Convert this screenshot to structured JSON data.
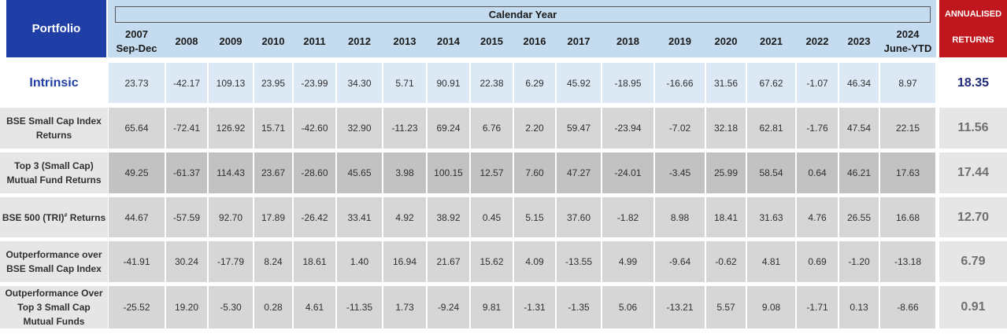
{
  "header": {
    "portfolio_label": "Portfolio",
    "calendar_title": "Calendar  Year",
    "years": [
      "2007\nSep-Dec",
      "2008",
      "2009",
      "2010",
      "2011",
      "2012",
      "2013",
      "2014",
      "2015",
      "2016",
      "2017",
      "2018",
      "2019",
      "2020",
      "2021",
      "2022",
      "2023",
      "2024\nJune-YTD"
    ],
    "annualised_line1": "ANNUALISED",
    "annualised_line2": "RETURNS"
  },
  "rows": [
    {
      "label": "Intrinsic",
      "values": [
        "23.73",
        "-42.17",
        "109.13",
        "23.95",
        "-23.99",
        "34.30",
        "5.71",
        "90.91",
        "22.38",
        "6.29",
        "45.92",
        "-18.95",
        "-16.66",
        "31.56",
        "67.62",
        "-1.07",
        "46.34",
        "8.97"
      ],
      "annualised": "18.35"
    },
    {
      "label": "BSE Small Cap  Index\nReturns",
      "values": [
        "65.64",
        "-72.41",
        "126.92",
        "15.71",
        "-42.60",
        "32.90",
        "-11.23",
        "69.24",
        "6.76",
        "2.20",
        "59.47",
        "-23.94",
        "-7.02",
        "32.18",
        "62.81",
        "-1.76",
        "47.54",
        "22.15"
      ],
      "annualised": "11.56"
    },
    {
      "label": "Top 3 (Small Cap)\nMutual Fund Returns",
      "values": [
        "49.25",
        "-61.37",
        "114.43",
        "23.67",
        "-28.60",
        "45.65",
        "3.98",
        "100.15",
        "12.57",
        "7.60",
        "47.27",
        "-24.01",
        "-3.45",
        "25.99",
        "58.54",
        "0.64",
        "46.21",
        "17.63"
      ],
      "annualised": "17.44"
    },
    {
      "label_pre": "BSE 500 (TRI)",
      "label_sup": "#",
      "label_post": " Returns",
      "values": [
        "44.67",
        "-57.59",
        "92.70",
        "17.89",
        "-26.42",
        "33.41",
        "4.92",
        "38.92",
        "0.45",
        "5.15",
        "37.60",
        "-1.82",
        "8.98",
        "18.41",
        "31.63",
        "4.76",
        "26.55",
        "16.68"
      ],
      "annualised": "12.70"
    },
    {
      "label": "Outperformance over\nBSE Small  Cap Index",
      "values": [
        "-41.91",
        "30.24",
        "-17.79",
        "8.24",
        "18.61",
        "1.40",
        "16.94",
        "21.67",
        "15.62",
        "4.09",
        "-13.55",
        "4.99",
        "-9.64",
        "-0.62",
        "4.81",
        "0.69",
        "-1.20",
        "-13.18"
      ],
      "annualised": "6.79"
    },
    {
      "label": "Outperformance Over\nTop 3 Small Cap\nMutual Funds",
      "values": [
        "-25.52",
        "19.20",
        "-5.30",
        "0.28",
        "4.61",
        "-11.35",
        "1.73",
        "-9.24",
        "9.81",
        "-1.31",
        "-1.35",
        "5.06",
        "-13.21",
        "5.57",
        "9.08",
        "-1.71",
        "0.13",
        "-8.66"
      ],
      "annualised": "0.91"
    }
  ],
  "colors": {
    "portfolio_header_bg": "#1f3fa6",
    "calendar_header_bg": "#c5dcf0",
    "annualised_header_bg": "#c0171f",
    "intrinsic_row_bg": "#dce9f5",
    "row_bg_light": "#d6d6d6",
    "row_bg_dark": "#c2c2c2",
    "row_label_bg": "#e6e6e6",
    "intrinsic_annualised_color": "#1f2a7a"
  }
}
